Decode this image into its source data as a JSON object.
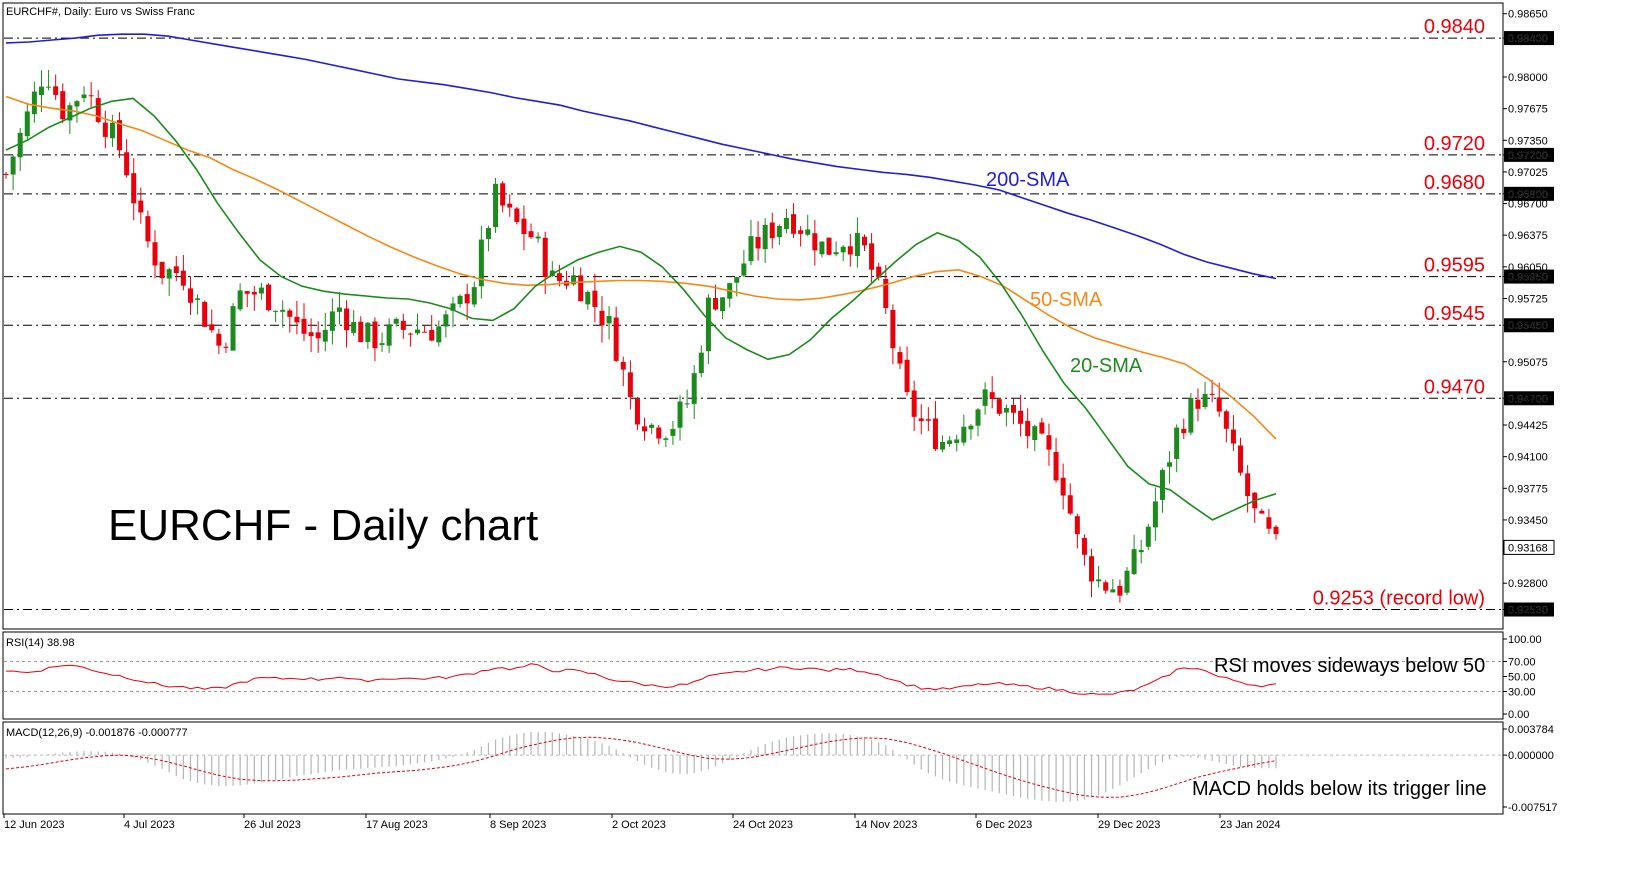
{
  "header": {
    "symbol_title": "EURCHF#, Daily:  Euro vs Swiss Franc"
  },
  "chart_data": {
    "type": "candlestick",
    "title": "EURCHF - Daily chart",
    "price_axis": {
      "ylim": [
        0.9234,
        0.9875
      ],
      "ticks": [
        "0.98650",
        "0.98400",
        "0.98000",
        "0.97675",
        "0.97350",
        "0.97200",
        "0.97025",
        "0.96800",
        "0.96700",
        "0.96375",
        "0.96050",
        "0.95950",
        "0.95725",
        "0.95450",
        "0.95075",
        "0.94700",
        "0.94425",
        "0.94100",
        "0.93775",
        "0.93450",
        "0.93168",
        "0.92800",
        "0.92530"
      ],
      "current_price": "0.93168"
    },
    "x_tick_labels": [
      "12 Jun 2023",
      "4 Jul 2023",
      "26 Jul 2023",
      "17 Aug 2023",
      "8 Sep 2023",
      "2 Oct 2023",
      "24 Oct 2023",
      "14 Nov 2023",
      "6 Dec 2023",
      "29 Dec 2023",
      "23 Jan 2024"
    ],
    "levels": [
      {
        "value": 0.984,
        "label": "0.9840",
        "tag": "0.98400"
      },
      {
        "value": 0.972,
        "label": "0.9720",
        "tag": "0.97200"
      },
      {
        "value": 0.968,
        "label": "0.9680",
        "tag": "0.96800"
      },
      {
        "value": 0.9595,
        "label": "0.9595",
        "tag": "0.95950"
      },
      {
        "value": 0.9545,
        "label": "0.9545",
        "tag": "0.95450"
      },
      {
        "value": 0.947,
        "label": "0.9470",
        "tag": "0.94700"
      },
      {
        "value": 0.9253,
        "label": "0.9253 (record low)",
        "tag": "0.92530"
      }
    ],
    "close_anchors": [
      0.97,
      0.9755,
      0.981,
      0.9762,
      0.979,
      0.9755,
      0.972,
      0.964,
      0.96,
      0.96,
      0.956,
      0.952,
      0.9578,
      0.9578,
      0.9567,
      0.954,
      0.953,
      0.9565,
      0.9538,
      0.953,
      0.954,
      0.9542,
      0.954,
      0.9558,
      0.9592,
      0.9678,
      0.965,
      0.9635,
      0.959,
      0.9595,
      0.957,
      0.954,
      0.9465,
      0.9442,
      0.944,
      0.947,
      0.957,
      0.958,
      0.962,
      0.964,
      0.966,
      0.964,
      0.9622,
      0.9635,
      0.962,
      0.956,
      0.947,
      0.944,
      0.9425,
      0.9445,
      0.947,
      0.946,
      0.944,
      0.942,
      0.939,
      0.931,
      0.928,
      0.9275,
      0.931,
      0.9375,
      0.944,
      0.947,
      0.946,
      0.94,
      0.9345,
      0.9317
    ],
    "series": [
      {
        "name": "200-SMA",
        "color": "#1f1fd6",
        "values": [
          0.9835,
          0.9836,
          0.9838,
          0.984,
          0.9843,
          0.9844,
          0.9844,
          0.9842,
          0.9838,
          0.9834,
          0.983,
          0.9826,
          0.9822,
          0.9818,
          0.9813,
          0.9808,
          0.9803,
          0.9798,
          0.9795,
          0.9792,
          0.9788,
          0.9784,
          0.9779,
          0.9775,
          0.9771,
          0.9765,
          0.976,
          0.9755,
          0.9749,
          0.9743,
          0.9737,
          0.9731,
          0.9726,
          0.9721,
          0.9716,
          0.9712,
          0.9708,
          0.9705,
          0.9702,
          0.97,
          0.9697,
          0.9693,
          0.9689,
          0.9684,
          0.9676,
          0.9668,
          0.966,
          0.9653,
          0.9645,
          0.9637,
          0.9628,
          0.9618,
          0.961,
          0.9604,
          0.9598,
          0.9593
        ]
      },
      {
        "name": "50-SMA",
        "color": "#f28a1a",
        "values": [
          0.978,
          0.9772,
          0.9768,
          0.9765,
          0.976,
          0.9752,
          0.9745,
          0.9735,
          0.9725,
          0.9717,
          0.9705,
          0.9695,
          0.9684,
          0.9672,
          0.966,
          0.9648,
          0.9636,
          0.9625,
          0.9615,
          0.9606,
          0.9598,
          0.9592,
          0.9588,
          0.9586,
          0.9587,
          0.9589,
          0.959,
          0.9591,
          0.9591,
          0.959,
          0.9588,
          0.9585,
          0.958,
          0.9575,
          0.9572,
          0.9571,
          0.9573,
          0.9577,
          0.9582,
          0.9588,
          0.9595,
          0.96,
          0.9602,
          0.9595,
          0.9585,
          0.957,
          0.9555,
          0.9542,
          0.9532,
          0.9525,
          0.9518,
          0.9512,
          0.9505,
          0.949,
          0.9472,
          0.9452,
          0.9428
        ]
      },
      {
        "name": "20-SMA",
        "color": "#1d8a1d",
        "values": [
          0.9725,
          0.9735,
          0.9748,
          0.9758,
          0.9768,
          0.9775,
          0.9778,
          0.976,
          0.9735,
          0.9705,
          0.967,
          0.964,
          0.9612,
          0.9595,
          0.9585,
          0.958,
          0.9577,
          0.9575,
          0.9573,
          0.9572,
          0.9568,
          0.9562,
          0.9552,
          0.955,
          0.9562,
          0.9585,
          0.96,
          0.9612,
          0.962,
          0.9626,
          0.962,
          0.9605,
          0.9582,
          0.9555,
          0.9532,
          0.952,
          0.951,
          0.9515,
          0.953,
          0.9552,
          0.957,
          0.959,
          0.961,
          0.9628,
          0.964,
          0.9632,
          0.9615,
          0.9588,
          0.9555,
          0.9518,
          0.9485,
          0.946,
          0.943,
          0.94,
          0.9382,
          0.9376,
          0.936,
          0.9345,
          0.9355,
          0.9365,
          0.9372
        ]
      }
    ],
    "annotations": [
      "200-SMA",
      "50-SMA",
      "20-SMA"
    ]
  },
  "rsi_panel": {
    "header": "RSI(14) 38.98",
    "ticks": [
      "100.00",
      "70.00",
      "50.00",
      "30.00",
      "0.00"
    ],
    "note": "RSI moves sideways below 50",
    "values": [
      58,
      55,
      60,
      66,
      62,
      55,
      50,
      44,
      38,
      36,
      33,
      34,
      42,
      48,
      47,
      48,
      46,
      50,
      44,
      46,
      48,
      47,
      48,
      50,
      55,
      62,
      60,
      66,
      58,
      58,
      54,
      46,
      42,
      38,
      37,
      40,
      50,
      54,
      58,
      60,
      62,
      61,
      58,
      60,
      57,
      50,
      40,
      34,
      33,
      36,
      40,
      40,
      37,
      35,
      32,
      28,
      25,
      28,
      34,
      45,
      60,
      62,
      50,
      44,
      38,
      39
    ]
  },
  "macd_panel": {
    "header": "MACD(12,26,9) -0.001876 -0.000777",
    "ticks": [
      "0.003784",
      "0.000000",
      "-0.007517"
    ],
    "note": "MACD holds below its trigger line",
    "histogram": [
      -0.0005,
      -0.0003,
      0.0001,
      0.0004,
      0.0006,
      0.0005,
      0.0002,
      -0.0008,
      -0.002,
      -0.0034,
      -0.0042,
      -0.0045,
      -0.0044,
      -0.004,
      -0.0035,
      -0.003,
      -0.0026,
      -0.0022,
      -0.002,
      -0.0018,
      -0.0016,
      -0.0012,
      -0.0008,
      -0.0002,
      0.0008,
      0.0022,
      0.003,
      0.0034,
      0.0033,
      0.0028,
      0.0022,
      0.0012,
      -0.0004,
      -0.0018,
      -0.0026,
      -0.0028,
      -0.002,
      -0.0008,
      0.0006,
      0.0018,
      0.0026,
      0.003,
      0.0032,
      0.003,
      0.0025,
      0.0015,
      -0.0004,
      -0.0024,
      -0.0036,
      -0.0044,
      -0.005,
      -0.0056,
      -0.0062,
      -0.0066,
      -0.0068,
      -0.0066,
      -0.0058,
      -0.0044,
      -0.0028,
      -0.0012,
      -0.0002,
      -0.0004,
      -0.001,
      -0.0016,
      -0.0019,
      -0.0019
    ],
    "signal": [
      -0.002,
      -0.0017,
      -0.0013,
      -0.0008,
      -0.0004,
      -0.0001,
      0.0,
      -0.0003,
      -0.0008,
      -0.0015,
      -0.0023,
      -0.003,
      -0.0035,
      -0.0037,
      -0.0037,
      -0.0036,
      -0.0034,
      -0.0032,
      -0.0029,
      -0.0026,
      -0.0024,
      -0.0022,
      -0.0019,
      -0.0015,
      -0.0009,
      -0.0001,
      0.0008,
      0.0015,
      0.0021,
      0.0025,
      0.0026,
      0.0024,
      0.002,
      0.0014,
      0.0007,
      0.0,
      -0.0005,
      -0.0006,
      -0.0004,
      0.0001,
      0.0007,
      0.0013,
      0.0019,
      0.0023,
      0.0025,
      0.0024,
      0.0019,
      0.0011,
      0.0002,
      -0.0008,
      -0.0018,
      -0.0028,
      -0.0037,
      -0.0045,
      -0.0052,
      -0.0058,
      -0.0061,
      -0.0061,
      -0.0057,
      -0.005,
      -0.0041,
      -0.0032,
      -0.0025,
      -0.0019,
      -0.0013,
      -0.0008
    ]
  }
}
